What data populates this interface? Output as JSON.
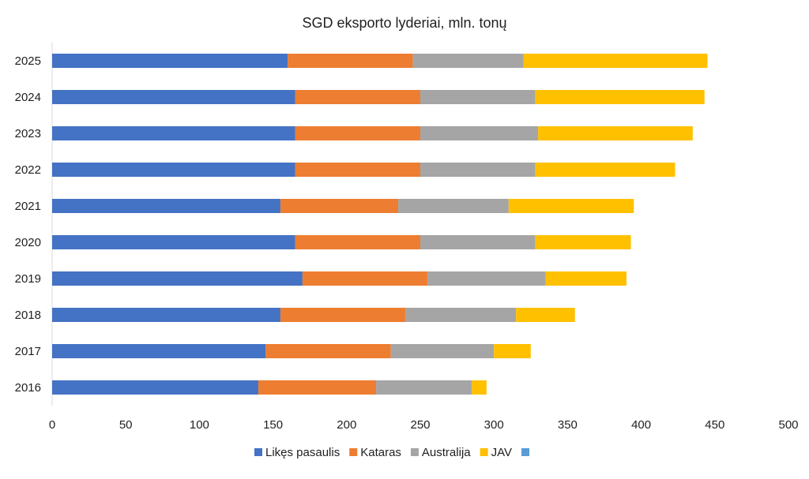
{
  "chart_data": {
    "type": "bar",
    "orientation": "horizontal",
    "stacked": true,
    "title": "SGD eksporto lyderiai, mln.  tonų",
    "xlabel": "",
    "ylabel": "",
    "xlim": [
      0,
      500
    ],
    "x_ticks": [
      0,
      50,
      100,
      150,
      200,
      250,
      300,
      350,
      400,
      450,
      500
    ],
    "grid": false,
    "legend_position": "bottom",
    "categories": [
      "2016",
      "2017",
      "2018",
      "2019",
      "2020",
      "2021",
      "2022",
      "2023",
      "2024",
      "2025"
    ],
    "series": [
      {
        "name": "Likęs pasaulis",
        "color": "#4472C4",
        "values": [
          140,
          145,
          155,
          170,
          165,
          155,
          165,
          165,
          165,
          160
        ]
      },
      {
        "name": "Kataras",
        "color": "#ED7D31",
        "values": [
          80,
          85,
          85,
          85,
          85,
          80,
          85,
          85,
          85,
          85
        ]
      },
      {
        "name": "Australija",
        "color": "#A5A5A5",
        "values": [
          65,
          70,
          75,
          80,
          78,
          75,
          78,
          80,
          78,
          75
        ]
      },
      {
        "name": "JAV",
        "color": "#FFC000",
        "values": [
          10,
          25,
          40,
          55,
          65,
          85,
          95,
          105,
          115,
          125
        ]
      }
    ],
    "legend_extra_swatch_color": "#5B9BD5"
  }
}
